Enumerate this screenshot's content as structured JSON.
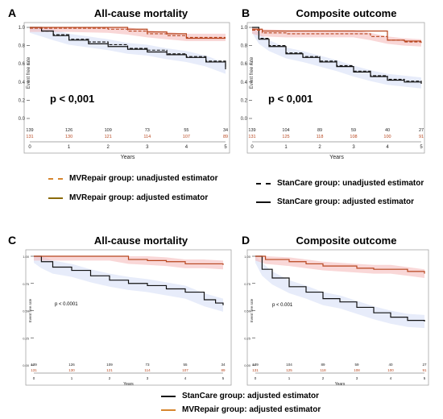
{
  "colors": {
    "stancare": "#111111",
    "mvrepair": "#b8461e",
    "ci_red": "#f4b7b7",
    "ci_blue": "#b9c8f0"
  },
  "chart_data": [
    {
      "panel": "A",
      "type": "line",
      "title": "All-cause mortality",
      "xlabel": "Years",
      "ylabel": "Event free rate",
      "xlim": [
        0,
        5
      ],
      "ylim": [
        0,
        1.0
      ],
      "xticks": [
        "0",
        "1",
        "2",
        "3",
        "4",
        "5"
      ],
      "yticks": [
        "0.0",
        "0.2",
        "0.4",
        "0.6",
        "0.8",
        "1.0"
      ],
      "annotation": "p < 0,001",
      "risk_table": {
        "top": [
          "139",
          "126",
          "109",
          "73",
          "55",
          "34"
        ],
        "bottom": [
          "131",
          "130",
          "121",
          "114",
          "107",
          "89"
        ]
      },
      "series": [
        {
          "group": "stancare",
          "style": "dashed",
          "x": [
            0,
            0.3,
            0.6,
            1,
            1.5,
            2,
            2.5,
            3,
            3.5,
            4,
            4.5,
            5
          ],
          "y": [
            1,
            0.96,
            0.92,
            0.87,
            0.84,
            0.81,
            0.77,
            0.75,
            0.71,
            0.68,
            0.63,
            0.55
          ]
        },
        {
          "group": "stancare",
          "style": "solid",
          "x": [
            0,
            0.3,
            0.6,
            1,
            1.5,
            2,
            2.5,
            3,
            3.5,
            4,
            4.5,
            5
          ],
          "y": [
            1,
            0.96,
            0.91,
            0.86,
            0.82,
            0.79,
            0.76,
            0.73,
            0.7,
            0.67,
            0.62,
            0.54
          ]
        },
        {
          "group": "mvrepair",
          "style": "dashed",
          "x": [
            0,
            1,
            2,
            2.5,
            3,
            3.5,
            4,
            4.5,
            5
          ],
          "y": [
            0.99,
            0.99,
            0.98,
            0.96,
            0.93,
            0.91,
            0.89,
            0.89,
            0.89
          ]
        },
        {
          "group": "mvrepair",
          "style": "solid",
          "x": [
            0,
            1,
            2,
            2.5,
            3,
            3.5,
            4,
            4.5,
            5
          ],
          "y": [
            1,
            1,
            1,
            0.98,
            0.95,
            0.93,
            0.88,
            0.88,
            0.88
          ]
        }
      ]
    },
    {
      "panel": "B",
      "type": "line",
      "title": "Composite outcome",
      "xlabel": "Years",
      "ylabel": "Event free rate",
      "xlim": [
        0,
        5
      ],
      "ylim": [
        0,
        1.0
      ],
      "xticks": [
        "0",
        "1",
        "2",
        "3",
        "4",
        "5"
      ],
      "yticks": [
        "0.0",
        "0.2",
        "0.4",
        "0.6",
        "0.8",
        "1.0"
      ],
      "annotation": "p < 0,001",
      "risk_table": {
        "top": [
          "139",
          "104",
          "89",
          "59",
          "40",
          "27"
        ],
        "bottom": [
          "131",
          "125",
          "118",
          "108",
          "100",
          "91"
        ]
      },
      "series": [
        {
          "group": "stancare",
          "style": "dashed",
          "x": [
            0,
            0.2,
            0.5,
            1,
            1.5,
            2,
            2.5,
            3,
            3.5,
            4,
            4.5,
            5
          ],
          "y": [
            1,
            0.88,
            0.8,
            0.72,
            0.68,
            0.63,
            0.58,
            0.52,
            0.47,
            0.43,
            0.41,
            0.39
          ]
        },
        {
          "group": "stancare",
          "style": "solid",
          "x": [
            0,
            0.2,
            0.5,
            1,
            1.5,
            2,
            2.5,
            3,
            3.5,
            4,
            4.5,
            5
          ],
          "y": [
            1,
            0.87,
            0.79,
            0.71,
            0.67,
            0.62,
            0.57,
            0.51,
            0.46,
            0.42,
            0.4,
            0.38
          ]
        },
        {
          "group": "mvrepair",
          "style": "dashed",
          "x": [
            0,
            0.3,
            1,
            2,
            3,
            3.5,
            4,
            4.5,
            5
          ],
          "y": [
            0.97,
            0.94,
            0.93,
            0.93,
            0.93,
            0.9,
            0.86,
            0.84,
            0.83
          ]
        },
        {
          "group": "mvrepair",
          "style": "solid",
          "x": [
            0,
            0.3,
            1,
            2,
            3,
            3.5,
            4,
            4.5,
            5
          ],
          "y": [
            0.98,
            0.96,
            0.96,
            0.96,
            0.96,
            0.96,
            0.86,
            0.85,
            0.85
          ]
        }
      ]
    },
    {
      "panel": "C",
      "type": "line",
      "title": "All-cause mortality",
      "xlabel": "Years",
      "ylabel": "Event free rate",
      "xlim": [
        0,
        5
      ],
      "ylim": [
        0,
        1.0
      ],
      "xticks": [
        "0",
        "1",
        "2",
        "3",
        "4",
        "5"
      ],
      "yticks": [
        "0.00",
        "0.25",
        "0.50",
        "0.75",
        "1.00"
      ],
      "annotation": "p < 0.0001",
      "risk_table": {
        "top": [
          "139",
          "126",
          "109",
          "73",
          "55",
          "34"
        ],
        "bottom": [
          "131",
          "130",
          "121",
          "114",
          "107",
          "89"
        ]
      },
      "series": [
        {
          "group": "stancare",
          "style": "solid",
          "x": [
            0,
            0.2,
            0.5,
            1,
            1.5,
            2,
            2.5,
            3,
            3.5,
            4,
            4.5,
            4.8,
            5
          ],
          "y": [
            1,
            0.95,
            0.9,
            0.87,
            0.82,
            0.78,
            0.75,
            0.73,
            0.7,
            0.67,
            0.6,
            0.57,
            0.55
          ]
        },
        {
          "group": "mvrepair",
          "style": "solid",
          "x": [
            0,
            1,
            2,
            2.5,
            3,
            3.5,
            4,
            4.5,
            5
          ],
          "y": [
            1,
            1,
            1,
            0.97,
            0.96,
            0.95,
            0.93,
            0.93,
            0.92
          ]
        }
      ]
    },
    {
      "panel": "D",
      "type": "line",
      "title": "Composite outcome",
      "xlabel": "Years",
      "ylabel": "Event free rate",
      "xlim": [
        0,
        5
      ],
      "ylim": [
        0,
        1.0
      ],
      "xticks": [
        "0",
        "1",
        "2",
        "3",
        "4",
        "5"
      ],
      "yticks": [
        "0.00",
        "0.25",
        "0.50",
        "0.75",
        "1.00"
      ],
      "annotation": "p < 0.001",
      "risk_table": {
        "top": [
          "139",
          "104",
          "89",
          "59",
          "40",
          "27"
        ],
        "bottom": [
          "131",
          "125",
          "118",
          "108",
          "100",
          "91"
        ]
      },
      "series": [
        {
          "group": "stancare",
          "style": "solid",
          "x": [
            0,
            0.2,
            0.5,
            1,
            1.5,
            2,
            2.5,
            3,
            3.5,
            4,
            4.5,
            5
          ],
          "y": [
            1,
            0.88,
            0.8,
            0.72,
            0.67,
            0.61,
            0.58,
            0.53,
            0.48,
            0.44,
            0.41,
            0.4
          ]
        },
        {
          "group": "mvrepair",
          "style": "solid",
          "x": [
            0,
            0.3,
            1,
            1.5,
            2,
            3,
            3.5,
            4,
            4.5,
            5
          ],
          "y": [
            1,
            0.97,
            0.95,
            0.93,
            0.91,
            0.89,
            0.88,
            0.88,
            0.86,
            0.84
          ]
        }
      ]
    }
  ],
  "legends": {
    "middle_left": [
      {
        "label": "MVRepair group: unadjusted estimator",
        "color": "#d7862f",
        "style": "dashed"
      },
      {
        "label": "MVRepair group: adjusted estimator",
        "color": "#8a6a0a",
        "style": "solid"
      }
    ],
    "middle_right": [
      {
        "label": "StanCare group: unadjusted estimator",
        "color": "#111111",
        "style": "dashed"
      },
      {
        "label": "StanCare group: adjusted estimator",
        "color": "#111111",
        "style": "solid"
      }
    ],
    "bottom": [
      {
        "label": "StanCare group: adjusted estimator",
        "color": "#111111",
        "style": "solid"
      },
      {
        "label": "MVRepair group: adjusted estimator",
        "color": "#d7862f",
        "style": "solid"
      }
    ]
  }
}
